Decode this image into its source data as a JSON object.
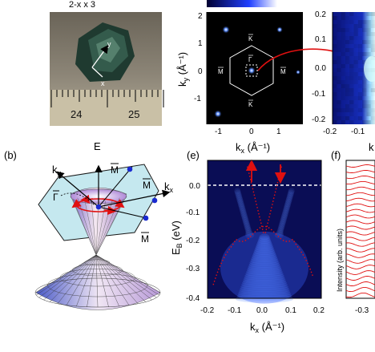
{
  "panels": {
    "top_formula": "2-x   x   3",
    "b": {
      "label": "(b)",
      "axes": {
        "ky": "k",
        "ky_sub": "y",
        "kx": "k",
        "kx_sub": "x",
        "E": "E"
      },
      "points": {
        "gamma": "Γ",
        "m1": "M",
        "m2": "M",
        "m3": "M"
      }
    },
    "photo": {
      "ruler_labels": [
        "24",
        "25"
      ],
      "crystal_axes": {
        "y": "y",
        "x": "x"
      }
    },
    "bz": {
      "ylabel": "k",
      "ylabel_sub": "y",
      "ylabel_unit": " (Å⁻¹)",
      "xlabel": "k",
      "xlabel_sub": "x",
      "xlabel_unit": " (Å⁻¹)",
      "yticks": [
        "2",
        "1",
        "0",
        "-1"
      ],
      "xticks": [
        "-1",
        "0",
        "1"
      ],
      "points": {
        "gamma": "Γ",
        "k_top": "K",
        "k_bot": "K",
        "m_left": "M",
        "m_right": "M"
      }
    },
    "zoom": {
      "yticks": [
        "0.2",
        "0.1",
        "0.0",
        "-0.1",
        "-0.2"
      ],
      "xticks": [
        "-0.2",
        "-0.1"
      ],
      "xlabel_frag": "k"
    },
    "e": {
      "label": "(e)",
      "ylabel": "E",
      "ylabel_sub": "B",
      "ylabel_unit": " (eV)",
      "xlabel": "k",
      "xlabel_sub": "x",
      "xlabel_unit": " (Å⁻¹)",
      "yticks": [
        "0.0",
        "-0.1",
        "-0.2",
        "-0.3",
        "-0.4"
      ],
      "xticks": [
        "-0.2",
        "-0.1",
        "0.0",
        "0.1",
        "0.2"
      ]
    },
    "f": {
      "label": "(f)",
      "ylabel": "Intensity (arb. units)",
      "xticks": [
        "-0.3"
      ]
    }
  },
  "colors": {
    "arpes_dark": "#0a0d55",
    "arpes_bright": "#ffffff",
    "arrow_red": "#e01010",
    "plane_fill": "#bfe6ee",
    "point_blue": "#1a2ad0"
  }
}
